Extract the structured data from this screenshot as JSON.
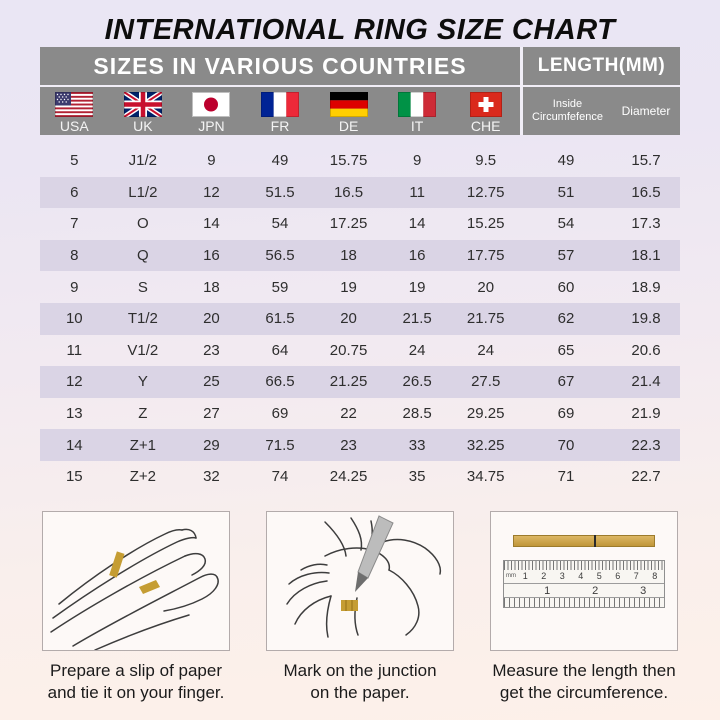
{
  "page": {
    "title": "INTERNATIONAL RING SIZE CHART"
  },
  "chart_data": {
    "type": "table",
    "title": "INTERNATIONAL RING SIZE CHART",
    "group_headers": [
      "SIZES IN VARIOUS COUNTRIES",
      "LENGTH(MM)"
    ],
    "columns": [
      "USA",
      "UK",
      "JPN",
      "FR",
      "DE",
      "IT",
      "CHE",
      "Inside Circumfefence",
      "Diameter"
    ],
    "flag_icons": [
      "usa-flag-icon",
      "uk-flag-icon",
      "japan-flag-icon",
      "france-flag-icon",
      "germany-flag-icon",
      "italy-flag-icon",
      "switzerland-flag-icon"
    ],
    "rows": [
      [
        "5",
        "J1/2",
        "9",
        "49",
        "15.75",
        "9",
        "9.5",
        "49",
        "15.7"
      ],
      [
        "6",
        "L1/2",
        "12",
        "51.5",
        "16.5",
        "11",
        "12.75",
        "51",
        "16.5"
      ],
      [
        "7",
        "O",
        "14",
        "54",
        "17.25",
        "14",
        "15.25",
        "54",
        "17.3"
      ],
      [
        "8",
        "Q",
        "16",
        "56.5",
        "18",
        "16",
        "17.75",
        "57",
        "18.1"
      ],
      [
        "9",
        "S",
        "18",
        "59",
        "19",
        "19",
        "20",
        "60",
        "18.9"
      ],
      [
        "10",
        "T1/2",
        "20",
        "61.5",
        "20",
        "21.5",
        "21.75",
        "62",
        "19.8"
      ],
      [
        "11",
        "V1/2",
        "23",
        "64",
        "20.75",
        "24",
        "24",
        "65",
        "20.6"
      ],
      [
        "12",
        "Y",
        "25",
        "66.5",
        "21.25",
        "26.5",
        "27.5",
        "67",
        "21.4"
      ],
      [
        "13",
        "Z",
        "27",
        "69",
        "22",
        "28.5",
        "29.25",
        "69",
        "21.9"
      ],
      [
        "14",
        "Z+1",
        "29",
        "71.5",
        "23",
        "33",
        "32.25",
        "70",
        "22.3"
      ],
      [
        "15",
        "Z+2",
        "32",
        "74",
        "24.25",
        "35",
        "34.75",
        "71",
        "22.7"
      ]
    ],
    "shaded_row_indices": [
      1,
      3,
      5,
      7,
      9
    ]
  },
  "instructions": [
    {
      "caption_line1": "Prepare a slip of paper",
      "caption_line2": "and tie it on your finger."
    },
    {
      "caption_line1": "Mark on the junction",
      "caption_line2": "on the paper."
    },
    {
      "caption_line1": "Measure the length then",
      "caption_line2": "get the circumference."
    }
  ],
  "ruler": {
    "unit_label": "mm",
    "mm_numbers": [
      "1",
      "2",
      "3",
      "4",
      "5",
      "6",
      "7",
      "8"
    ],
    "inch_numbers": [
      "1",
      "2",
      "3"
    ]
  },
  "colors": {
    "header_bg": "#8a8a8a",
    "header_text": "#ffffff",
    "row_shade": "#dad4e5",
    "background_top": "#eae6f4",
    "background_bottom": "#fdf0e9",
    "paper_gold": "#c59d33"
  }
}
